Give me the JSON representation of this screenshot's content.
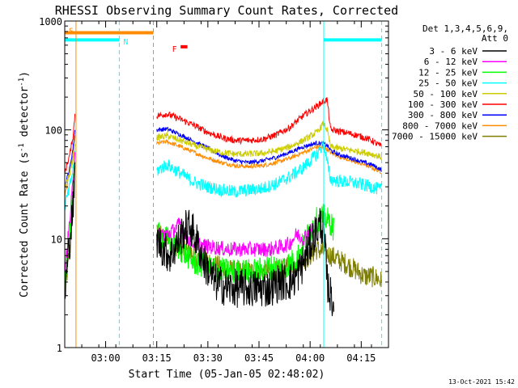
{
  "chart_data": {
    "type": "line",
    "title": "RHESSI Observing Summary Count Rates, Corrected",
    "xlabel": "Start Time (05-Jan-05 02:48:02)",
    "ylabel": "Corrected Count Rate (s⁻¹ detector⁻¹)",
    "ylabel_main": "Corrected Count Rate (s",
    "ylabel_sup1": "-1",
    "ylabel_mid": " detector",
    "ylabel_sup2": "-1",
    "ylabel_end": ")",
    "y_scale": "log",
    "ylim": [
      1,
      1000
    ],
    "xlim_minutes": [
      0,
      95
    ],
    "y_ticks": [
      {
        "value": 1,
        "label": "1"
      },
      {
        "value": 10,
        "label": "10"
      },
      {
        "value": 100,
        "label": "100"
      },
      {
        "value": 1000,
        "label": "1000"
      }
    ],
    "x_ticks": [
      {
        "value": 12,
        "label": "03:00"
      },
      {
        "value": 27,
        "label": "03:15"
      },
      {
        "value": 42,
        "label": "03:30"
      },
      {
        "value": 57,
        "label": "03:45"
      },
      {
        "value": 72,
        "label": "04:00"
      },
      {
        "value": 87,
        "label": "04:15"
      }
    ],
    "legend_header": [
      "Det 1,3,4,5,6,9,",
      "Att 0"
    ],
    "legend_position": "right",
    "footer": "13-Oct-2021 15:42",
    "annotations": [
      {
        "text": "S",
        "color": "#ff8c00"
      },
      {
        "text": "N",
        "color": "#00ffff"
      },
      {
        "text": "F",
        "color": "#ff0000"
      }
    ],
    "events": {
      "saa": {
        "from": 0,
        "to": 26,
        "y": 780,
        "color": "#ff8c00"
      },
      "night_1": {
        "from": 0,
        "to": 16,
        "y": 670,
        "color": "#00ffff"
      },
      "night_2": {
        "from": 76,
        "to": 93,
        "y": 670,
        "color": "#00ffff"
      },
      "flare": {
        "from": 34,
        "to": 36,
        "y": 580,
        "color": "#ff0000"
      }
    },
    "vlines": [
      {
        "x": 0,
        "style": "solid",
        "color": "#00ffff"
      },
      {
        "x": 3.3,
        "style": "solid",
        "color": "#ff8c00"
      },
      {
        "x": 16,
        "style": "dashed",
        "color": "#00ffff"
      },
      {
        "x": 26,
        "style": "dashed",
        "color": "#ff8c00"
      },
      {
        "x": 76,
        "style": "solid",
        "color": "#00ffff"
      },
      {
        "x": 93,
        "style": "dashed",
        "color": "#00ffff"
      }
    ],
    "series": [
      {
        "name": "3 - 6 keV",
        "color": "#000000",
        "noise": 0.18,
        "segments": [
          {
            "x": [
              0,
              1.5,
              2.5,
              3.0
            ],
            "y": [
              3,
              10,
              20,
              40
            ]
          },
          {
            "x": [
              27,
              29,
              31,
              33,
              35,
              37,
              39,
              41,
              44,
              48,
              52,
              56,
              60,
              63,
              66,
              68,
              70,
              72,
              74,
              75,
              76,
              77,
              78,
              79
            ],
            "y": [
              10,
              8,
              7,
              9,
              12,
              13,
              9,
              6,
              4,
              3.5,
              3.5,
              3.5,
              3.5,
              4,
              4,
              4.5,
              6,
              9,
              12,
              14,
              12,
              4,
              3,
              2.5
            ]
          }
        ]
      },
      {
        "name": "6 - 12 keV",
        "color": "#ff00ff",
        "noise": 0.07,
        "segments": [
          {
            "x": [
              0,
              1.5,
              2.5,
              3.0
            ],
            "y": [
              5,
              15,
              35,
              70
            ]
          },
          {
            "x": [
              27,
              30,
              32,
              34,
              35,
              36,
              38,
              42,
              48,
              52,
              56,
              60,
              64,
              66,
              68,
              70,
              72,
              73
            ],
            "y": [
              11,
              11,
              12,
              14,
              12,
              10,
              9,
              8.5,
              8,
              8,
              8,
              8,
              8.5,
              9,
              11,
              10,
              12,
              12
            ]
          }
        ]
      },
      {
        "name": "12 - 25 keV",
        "color": "#00ff00",
        "noise": 0.12,
        "segments": [
          {
            "x": [
              0,
              1.5,
              2.5,
              3.0
            ],
            "y": [
              4,
              12,
              30,
              60
            ]
          },
          {
            "x": [
              27,
              30,
              32,
              34,
              36,
              38,
              42,
              48,
              52,
              56,
              60,
              64,
              68,
              70,
              72,
              74,
              76,
              78,
              79
            ],
            "y": [
              11,
              10,
              9,
              8,
              7,
              6,
              5.5,
              5,
              5,
              5,
              5.5,
              5.5,
              6.5,
              9,
              12,
              15,
              16,
              14,
              12
            ]
          }
        ]
      },
      {
        "name": "25 - 50 keV",
        "color": "#00ffff",
        "noise": 0.06,
        "segments": [
          {
            "x": [
              0,
              1.5,
              2.5,
              3.0
            ],
            "y": [
              20,
              30,
              45,
              60
            ]
          },
          {
            "x": [
              27,
              30,
              34,
              38,
              42,
              46,
              50,
              54,
              58,
              62,
              66,
              70,
              74,
              76,
              77,
              78,
              80,
              84,
              88,
              90,
              93
            ],
            "y": [
              42,
              48,
              40,
              33,
              30,
              28,
              27,
              28,
              29,
              32,
              37,
              45,
              60,
              75,
              50,
              35,
              34,
              33,
              31,
              30,
              28
            ]
          }
        ]
      },
      {
        "name": "50 - 100 keV",
        "color": "#cccc00",
        "noise": 0.03,
        "segments": [
          {
            "x": [
              0,
              1.5,
              2.5,
              3.0
            ],
            "y": [
              30,
              40,
              55,
              75
            ]
          },
          {
            "x": [
              27,
              30,
              34,
              38,
              42,
              46,
              50,
              54,
              58,
              62,
              66,
              70,
              74,
              76,
              77,
              78,
              80,
              84,
              88,
              90,
              93
            ],
            "y": [
              85,
              88,
              80,
              72,
              66,
              62,
              60,
              60,
              61,
              64,
              70,
              80,
              95,
              115,
              100,
              70,
              68,
              65,
              62,
              60,
              56
            ]
          }
        ]
      },
      {
        "name": "100 - 300 keV",
        "color": "#ff0000",
        "noise": 0.03,
        "segments": [
          {
            "x": [
              0,
              1.5,
              2.5,
              3.0
            ],
            "y": [
              40,
              60,
              90,
              140
            ]
          },
          {
            "x": [
              27,
              30,
              34,
              38,
              42,
              46,
              50,
              54,
              58,
              62,
              66,
              70,
              74,
              76,
              77,
              78,
              80,
              84,
              88,
              90,
              93
            ],
            "y": [
              135,
              140,
              125,
              110,
              95,
              85,
              80,
              80,
              82,
              90,
              105,
              135,
              165,
              185,
              190,
              100,
              98,
              92,
              85,
              80,
              70
            ]
          }
        ]
      },
      {
        "name": "300 - 800 keV",
        "color": "#0000ff",
        "noise": 0.02,
        "segments": [
          {
            "x": [
              0,
              1.5,
              2.5,
              3.0
            ],
            "y": [
              30,
              45,
              70,
              100
            ]
          },
          {
            "x": [
              27,
              30,
              34,
              38,
              42,
              46,
              50,
              54,
              58,
              62,
              66,
              70,
              74,
              76,
              77,
              78,
              80,
              84,
              88,
              90,
              93
            ],
            "y": [
              100,
              102,
              90,
              78,
              68,
              58,
              52,
              50,
              52,
              56,
              62,
              70,
              76,
              74,
              72,
              65,
              60,
              55,
              50,
              48,
              43
            ]
          }
        ]
      },
      {
        "name": "800 - 7000 keV",
        "color": "#ff8c00",
        "noise": 0.02,
        "segments": [
          {
            "x": [
              0,
              1.5,
              2.5,
              3.0
            ],
            "y": [
              25,
              40,
              60,
              90
            ]
          },
          {
            "x": [
              27,
              30,
              34,
              38,
              42,
              46,
              50,
              54,
              58,
              62,
              66,
              70,
              74,
              76,
              77,
              78,
              80,
              84,
              88,
              90,
              93
            ],
            "y": [
              75,
              78,
              70,
              62,
              55,
              50,
              47,
              46,
              47,
              50,
              55,
              62,
              70,
              68,
              66,
              62,
              58,
              52,
              48,
              45,
              41
            ]
          }
        ]
      },
      {
        "name": "7000 - 15000 keV",
        "color": "#808000",
        "noise": 0.1,
        "segments": [
          {
            "x": [
              0,
              1.5,
              2.5,
              3.0
            ],
            "y": [
              3,
              8,
              25,
              50
            ]
          },
          {
            "x": [
              27,
              30,
              34,
              38,
              42,
              46,
              50,
              54,
              58,
              62,
              66,
              70,
              72,
              74,
              76,
              78,
              80,
              82,
              84,
              86,
              88,
              90,
              92,
              93
            ],
            "y": [
              11,
              10,
              8,
              7,
              6,
              5.5,
              5,
              5,
              5,
              5,
              5.5,
              6.5,
              7,
              8,
              7.5,
              7,
              6.5,
              6,
              5.5,
              5,
              4.5,
              4.5,
              4.3,
              4
            ]
          }
        ]
      }
    ]
  }
}
